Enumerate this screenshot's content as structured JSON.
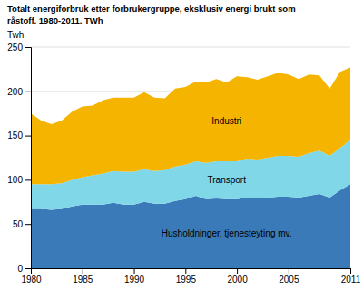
{
  "chart_data": {
    "type": "area",
    "stacked": true,
    "title": "Totalt energiforbruk etter forbrukergruppe, eksklusiv energi brukt som",
    "subtitle": "råstoff. 1980-2011. TWh",
    "y_label": "Twh",
    "x": [
      1980,
      1981,
      1982,
      1983,
      1984,
      1985,
      1986,
      1987,
      1988,
      1989,
      1990,
      1991,
      1992,
      1993,
      1994,
      1995,
      1996,
      1997,
      1998,
      1999,
      2000,
      2001,
      2002,
      2003,
      2004,
      2005,
      2006,
      2007,
      2008,
      2009,
      2010,
      2011
    ],
    "series": [
      {
        "name": "Husholdninger, tjenesteyting mv.",
        "color": "#3a7ab8",
        "values": [
          67,
          67,
          66,
          67,
          70,
          72,
          72,
          72,
          74,
          72,
          72,
          75,
          73,
          73,
          76,
          78,
          82,
          78,
          79,
          78,
          78,
          80,
          79,
          80,
          81,
          81,
          80,
          82,
          84,
          80,
          88,
          95
        ]
      },
      {
        "name": "Transport",
        "color": "#7fd7e8",
        "values": [
          28,
          28,
          29,
          29,
          30,
          31,
          33,
          35,
          36,
          37,
          37,
          37,
          37,
          38,
          39,
          39,
          39,
          41,
          42,
          43,
          43,
          44,
          44,
          45,
          46,
          46,
          46,
          48,
          49,
          47,
          48,
          50
        ]
      },
      {
        "name": "Industri",
        "color": "#f5b400",
        "values": [
          80,
          72,
          68,
          71,
          77,
          80,
          79,
          83,
          83,
          84,
          84,
          87,
          83,
          81,
          88,
          88,
          90,
          91,
          93,
          89,
          96,
          92,
          90,
          92,
          94,
          92,
          88,
          89,
          85,
          76,
          86,
          82
        ]
      }
    ],
    "xlim": [
      1980,
      2011
    ],
    "xticks": [
      1980,
      1985,
      1990,
      1995,
      2000,
      2005,
      2011
    ],
    "ylim": [
      0,
      250
    ],
    "yticks": [
      0,
      50,
      100,
      150,
      200,
      250
    ],
    "grid": true
  }
}
